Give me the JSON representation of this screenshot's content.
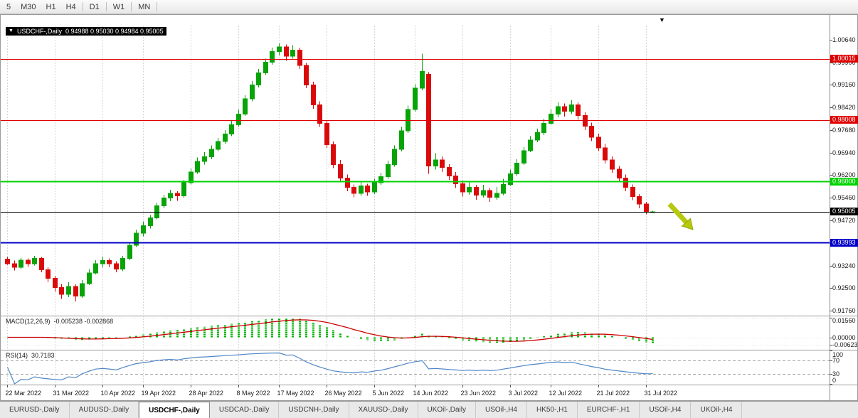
{
  "toolbar": {
    "periods": [
      "5",
      "M30",
      "H1",
      "H4",
      "D1",
      "W1",
      "MN"
    ]
  },
  "chart_data": {
    "type": "candlestick",
    "symbol": "USDCHF-,Daily",
    "ohlc_text": "0.94988 0.95030 0.94984 0.95005",
    "ylim": [
      0.916,
      1.011
    ],
    "y_axis_labels": [
      "1.00640",
      "0.99900",
      "0.99160",
      "0.98420",
      "0.97680",
      "0.96940",
      "0.96200",
      "0.95460",
      "0.94720",
      "0.93980",
      "0.93240",
      "0.92500",
      "0.91760"
    ],
    "x_tick_indices": [
      0,
      7,
      14,
      20,
      27,
      34,
      40,
      47,
      54,
      60,
      67,
      74,
      80,
      87,
      94
    ],
    "x_tick_labels": [
      "22 Mar 2022",
      "31 Mar 2022",
      "10 Apr 2022",
      "19 Apr 2022",
      "28 Apr 2022",
      "8 May 2022",
      "17 May 2022",
      "26 May 2022",
      "5 Jun 2022",
      "14 Jun 2022",
      "23 Jun 2022",
      "3 Jul 2022",
      "12 Jul 2022",
      "21 Jul 2022",
      "31 Jul 2022"
    ],
    "colors": {
      "up": "#07A307",
      "down": "#DB0A0A",
      "macd_hist": "#00B400",
      "macd_signal": "#CC0000",
      "rsi_line": "#4F86C6"
    },
    "hlines": [
      {
        "price": 1.00015,
        "label": "1.00015",
        "color": "#E00000",
        "width": 1
      },
      {
        "price": 0.98008,
        "label": "0.98008",
        "color": "#E00000",
        "width": 1
      },
      {
        "price": 0.96,
        "label": "0.96000",
        "color": "#00D300",
        "width": 2
      },
      {
        "price": 0.95005,
        "label": "0.95005",
        "color": "#000000",
        "width": 1
      },
      {
        "price": 0.93993,
        "label": "0.93993",
        "color": "#0000C8",
        "width": 2
      }
    ],
    "arrow_annotation": {
      "from": [
        941,
        287
      ],
      "to": [
        974,
        323
      ],
      "color": "#B5C90E",
      "edge": "#93A509"
    },
    "candles": [
      [
        0.9345,
        0.9352,
        0.9326,
        0.933
      ],
      [
        0.933,
        0.934,
        0.9308,
        0.9318
      ],
      [
        0.9318,
        0.935,
        0.9312,
        0.9342
      ],
      [
        0.9342,
        0.9348,
        0.932,
        0.933
      ],
      [
        0.933,
        0.9356,
        0.9324,
        0.9348
      ],
      [
        0.9348,
        0.9352,
        0.9302,
        0.931
      ],
      [
        0.931,
        0.9318,
        0.927,
        0.9282
      ],
      [
        0.9282,
        0.929,
        0.9238,
        0.9252
      ],
      [
        0.9252,
        0.9264,
        0.9215,
        0.923
      ],
      [
        0.923,
        0.927,
        0.922,
        0.9256
      ],
      [
        0.9256,
        0.9262,
        0.9206,
        0.9224
      ],
      [
        0.9224,
        0.9276,
        0.9218,
        0.9265
      ],
      [
        0.9265,
        0.9312,
        0.926,
        0.93
      ],
      [
        0.93,
        0.9342,
        0.9295,
        0.933
      ],
      [
        0.933,
        0.9352,
        0.9318,
        0.934
      ],
      [
        0.934,
        0.9348,
        0.9318,
        0.933
      ],
      [
        0.933,
        0.9338,
        0.9302,
        0.9312
      ],
      [
        0.9312,
        0.9356,
        0.9306,
        0.9348
      ],
      [
        0.9348,
        0.9398,
        0.9342,
        0.939
      ],
      [
        0.939,
        0.9442,
        0.9385,
        0.943
      ],
      [
        0.943,
        0.9468,
        0.942,
        0.9455
      ],
      [
        0.9455,
        0.949,
        0.9445,
        0.948
      ],
      [
        0.948,
        0.953,
        0.9475,
        0.952
      ],
      [
        0.952,
        0.9556,
        0.9512,
        0.9545
      ],
      [
        0.9545,
        0.9572,
        0.9535,
        0.956
      ],
      [
        0.956,
        0.9568,
        0.9536,
        0.9552
      ],
      [
        0.9552,
        0.9605,
        0.9546,
        0.9595
      ],
      [
        0.9595,
        0.9642,
        0.959,
        0.963
      ],
      [
        0.963,
        0.9678,
        0.9624,
        0.9665
      ],
      [
        0.9665,
        0.9695,
        0.9655,
        0.968
      ],
      [
        0.968,
        0.9718,
        0.9672,
        0.9705
      ],
      [
        0.9705,
        0.9742,
        0.9698,
        0.973
      ],
      [
        0.973,
        0.9768,
        0.9722,
        0.9755
      ],
      [
        0.9755,
        0.9798,
        0.9748,
        0.9785
      ],
      [
        0.9785,
        0.9834,
        0.9778,
        0.982
      ],
      [
        0.982,
        0.9882,
        0.9814,
        0.987
      ],
      [
        0.987,
        0.9928,
        0.9862,
        0.9915
      ],
      [
        0.9915,
        0.9968,
        0.9908,
        0.9955
      ],
      [
        0.9955,
        1.0002,
        0.9948,
        0.999
      ],
      [
        0.999,
        1.0038,
        0.9982,
        1.0025
      ],
      [
        1.0025,
        1.0052,
        1.0012,
        1.004
      ],
      [
        1.004,
        1.0048,
        0.9995,
        1.001
      ],
      [
        1.001,
        1.0046,
        1.0002,
        1.003
      ],
      [
        1.003,
        1.0038,
        0.9968,
        0.998
      ],
      [
        0.998,
        0.9988,
        0.9905,
        0.9915
      ],
      [
        0.9915,
        0.9926,
        0.9838,
        0.985
      ],
      [
        0.985,
        0.9862,
        0.9778,
        0.979
      ],
      [
        0.979,
        0.98,
        0.971,
        0.972
      ],
      [
        0.972,
        0.973,
        0.9643,
        0.9655
      ],
      [
        0.9655,
        0.967,
        0.9598,
        0.961
      ],
      [
        0.961,
        0.9622,
        0.9568,
        0.958
      ],
      [
        0.958,
        0.959,
        0.9548,
        0.956
      ],
      [
        0.956,
        0.9598,
        0.9552,
        0.9585
      ],
      [
        0.9585,
        0.9592,
        0.9552,
        0.9565
      ],
      [
        0.9565,
        0.9608,
        0.9558,
        0.9595
      ],
      [
        0.9595,
        0.9628,
        0.9588,
        0.9615
      ],
      [
        0.9615,
        0.9668,
        0.9608,
        0.9655
      ],
      [
        0.9655,
        0.9718,
        0.9648,
        0.9705
      ],
      [
        0.9705,
        0.9778,
        0.9698,
        0.9765
      ],
      [
        0.9765,
        0.9848,
        0.9758,
        0.9835
      ],
      [
        0.9835,
        0.9918,
        0.9828,
        0.9905
      ],
      [
        0.9905,
        1.0018,
        0.9898,
        0.996
      ],
      [
        0.995,
        0.9958,
        0.9625,
        0.965
      ],
      [
        0.965,
        0.9692,
        0.9638,
        0.967
      ],
      [
        0.967,
        0.9682,
        0.963,
        0.9645
      ],
      [
        0.9645,
        0.9656,
        0.9605,
        0.9618
      ],
      [
        0.9618,
        0.963,
        0.9578,
        0.9592
      ],
      [
        0.9592,
        0.9602,
        0.955,
        0.9565
      ],
      [
        0.9565,
        0.9598,
        0.9556,
        0.958
      ],
      [
        0.958,
        0.9588,
        0.954,
        0.9555
      ],
      [
        0.9555,
        0.9588,
        0.9546,
        0.957
      ],
      [
        0.957,
        0.9578,
        0.9533,
        0.9548
      ],
      [
        0.9548,
        0.9582,
        0.954,
        0.956
      ],
      [
        0.956,
        0.9608,
        0.9555,
        0.959
      ],
      [
        0.959,
        0.9638,
        0.9585,
        0.9625
      ],
      [
        0.9625,
        0.9672,
        0.9618,
        0.966
      ],
      [
        0.966,
        0.9712,
        0.9654,
        0.97
      ],
      [
        0.97,
        0.9748,
        0.9695,
        0.9735
      ],
      [
        0.9735,
        0.9772,
        0.9728,
        0.976
      ],
      [
        0.976,
        0.9805,
        0.9752,
        0.979
      ],
      [
        0.979,
        0.9835,
        0.9785,
        0.982
      ],
      [
        0.982,
        0.9858,
        0.981,
        0.9845
      ],
      [
        0.9845,
        0.9855,
        0.9812,
        0.983
      ],
      [
        0.983,
        0.9865,
        0.982,
        0.985
      ],
      [
        0.985,
        0.9858,
        0.9802,
        0.9815
      ],
      [
        0.9815,
        0.9826,
        0.9768,
        0.978
      ],
      [
        0.978,
        0.9792,
        0.9732,
        0.9745
      ],
      [
        0.9745,
        0.9756,
        0.97,
        0.971
      ],
      [
        0.971,
        0.9722,
        0.9658,
        0.967
      ],
      [
        0.967,
        0.9682,
        0.9628,
        0.964
      ],
      [
        0.964,
        0.965,
        0.9598,
        0.961
      ],
      [
        0.961,
        0.9622,
        0.9568,
        0.958
      ],
      [
        0.958,
        0.959,
        0.9538,
        0.955
      ],
      [
        0.955,
        0.9558,
        0.9512,
        0.9525
      ],
      [
        0.9525,
        0.9532,
        0.9492,
        0.9499
      ],
      [
        0.94988,
        0.9503,
        0.94984,
        0.95005
      ]
    ],
    "indicators": {
      "macd": {
        "label": "MACD(12,26,9)",
        "current": "-0.005238 -0.002868",
        "fast": 12,
        "slow": 26,
        "signal": 9,
        "axis_labels": [
          "0.01560",
          "0.00000",
          "-0.00623"
        ],
        "range": [
          -0.0095,
          0.017
        ]
      },
      "rsi": {
        "label": "RSI(14)",
        "current": "30.7183",
        "period": 14,
        "levels": [
          70,
          30
        ],
        "axis_labels": [
          100,
          70,
          30,
          0
        ]
      }
    }
  },
  "tabs": {
    "active_index": 2,
    "items": [
      {
        "label": "EURUSD-,Daily"
      },
      {
        "label": "AUDUSD-,Daily"
      },
      {
        "label": "USDCHF-,Daily"
      },
      {
        "label": "USDCAD-,Daily"
      },
      {
        "label": "USDCNH-,Daily"
      },
      {
        "label": "XAUUSD-,Daily"
      },
      {
        "label": "UKOil-,Daily"
      },
      {
        "label": "USOil-,H4"
      },
      {
        "label": "HK50-,H1"
      },
      {
        "label": "EURCHF-,H1"
      },
      {
        "label": "USOil-,H4"
      },
      {
        "label": "UKOil-,H4"
      }
    ]
  }
}
